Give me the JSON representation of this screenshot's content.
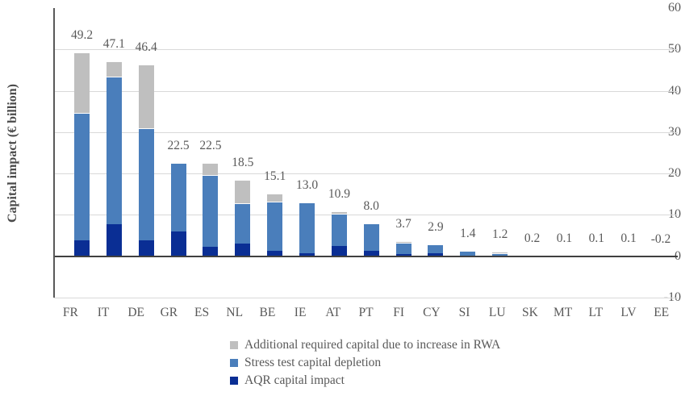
{
  "colors": {
    "rwa": "#bfbfbf",
    "stress": "#4a7ebb",
    "aqr": "#0a2e94",
    "gridline": "#d9d9d9",
    "zero_line": "#404040",
    "axis_line": "#595959",
    "text": "#595959"
  },
  "legend": [
    {
      "key": "rwa",
      "label": "Additional required capital due to increase in RWA"
    },
    {
      "key": "stress",
      "label": "Stress test capital depletion"
    },
    {
      "key": "aqr",
      "label": "AQR capital impact"
    }
  ],
  "chart_data": {
    "type": "bar",
    "stacked": true,
    "title": "",
    "xlabel": "",
    "ylabel": "Capital impact (€ billion)",
    "ylim": [
      -10,
      60
    ],
    "ytick_step": 10,
    "y_ticks": [
      60,
      50,
      40,
      30,
      20,
      10,
      0,
      -10
    ],
    "grid": true,
    "legend_position": "bottom-left",
    "categories": [
      "FR",
      "IT",
      "DE",
      "GR",
      "ES",
      "NL",
      "BE",
      "IE",
      "AT",
      "PT",
      "FI",
      "CY",
      "SI",
      "LU",
      "SK",
      "MT",
      "LT",
      "LV",
      "EE"
    ],
    "series": [
      {
        "key": "aqr",
        "name": "AQR capital impact",
        "color": "#0a2e94",
        "values": [
          3.9,
          7.8,
          3.9,
          5.9,
          2.3,
          3.0,
          1.4,
          0.7,
          2.4,
          1.4,
          0.6,
          0.8,
          0.1,
          0.0,
          0.0,
          0.0,
          0.0,
          0.0,
          0.0
        ]
      },
      {
        "key": "stress",
        "name": "Stress test capital depletion",
        "color": "#4a7ebb",
        "values": [
          30.8,
          35.7,
          27.0,
          16.6,
          17.4,
          9.9,
          11.9,
          12.3,
          7.9,
          6.6,
          2.7,
          2.1,
          1.3,
          0.8,
          0.2,
          0.1,
          0.1,
          0.1,
          -0.2
        ]
      },
      {
        "key": "rwa",
        "name": "Additional required capital due to increase in RWA",
        "color": "#bfbfbf",
        "values": [
          14.5,
          3.6,
          15.5,
          0.0,
          2.8,
          5.6,
          1.8,
          0.0,
          0.6,
          0.0,
          0.4,
          0.0,
          0.0,
          0.4,
          0.0,
          0.0,
          0.0,
          0.0,
          0.0
        ]
      }
    ],
    "totals": [
      49.2,
      47.1,
      46.4,
      22.5,
      22.5,
      18.5,
      15.1,
      13.0,
      10.9,
      8.0,
      3.7,
      2.9,
      1.4,
      1.2,
      0.2,
      0.1,
      0.1,
      0.1,
      -0.2
    ],
    "total_labels": [
      "49.2",
      "47.1",
      "46.4",
      "22.5",
      "22.5",
      "18.5",
      "15.1",
      "13.0",
      "10.9",
      "8.0",
      "3.7",
      "2.9",
      "1.4",
      "1.2",
      "0.2",
      "0.1",
      "0.1",
      "0.1",
      "-0.2"
    ]
  }
}
